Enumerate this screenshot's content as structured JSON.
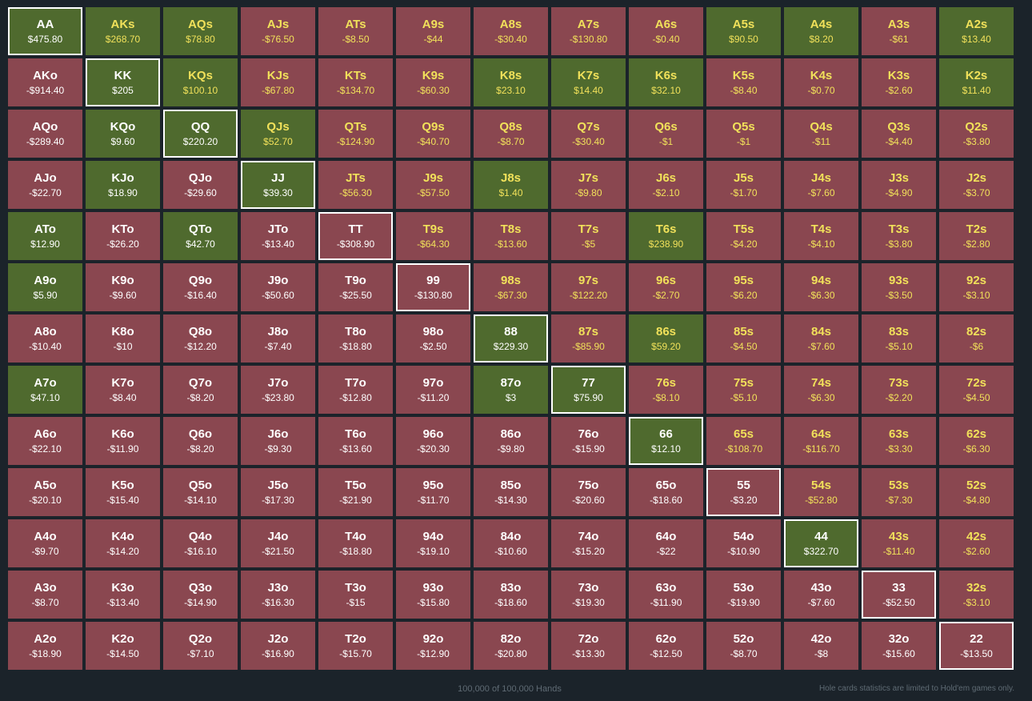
{
  "colors": {
    "background": "#1b232a",
    "negative_cell": "#8a4750",
    "positive_cell": "#4f6a2e",
    "suited_text": "#f1e15a",
    "offsuit_text": "#ffffff",
    "pair_border": "#ffffff"
  },
  "grid": {
    "rows": [
      [
        {
          "hand": "AA",
          "amount": "$475.80"
        },
        {
          "hand": "AKs",
          "amount": "$268.70"
        },
        {
          "hand": "AQs",
          "amount": "$78.80"
        },
        {
          "hand": "AJs",
          "amount": "-$76.50"
        },
        {
          "hand": "ATs",
          "amount": "-$8.50"
        },
        {
          "hand": "A9s",
          "amount": "-$44"
        },
        {
          "hand": "A8s",
          "amount": "-$30.40"
        },
        {
          "hand": "A7s",
          "amount": "-$130.80"
        },
        {
          "hand": "A6s",
          "amount": "-$0.40"
        },
        {
          "hand": "A5s",
          "amount": "$90.50"
        },
        {
          "hand": "A4s",
          "amount": "$8.20"
        },
        {
          "hand": "A3s",
          "amount": "-$61"
        },
        {
          "hand": "A2s",
          "amount": "$13.40"
        }
      ],
      [
        {
          "hand": "AKo",
          "amount": "-$914.40"
        },
        {
          "hand": "KK",
          "amount": "$205"
        },
        {
          "hand": "KQs",
          "amount": "$100.10"
        },
        {
          "hand": "KJs",
          "amount": "-$67.80"
        },
        {
          "hand": "KTs",
          "amount": "-$134.70"
        },
        {
          "hand": "K9s",
          "amount": "-$60.30"
        },
        {
          "hand": "K8s",
          "amount": "$23.10"
        },
        {
          "hand": "K7s",
          "amount": "$14.40"
        },
        {
          "hand": "K6s",
          "amount": "$32.10"
        },
        {
          "hand": "K5s",
          "amount": "-$8.40"
        },
        {
          "hand": "K4s",
          "amount": "-$0.70"
        },
        {
          "hand": "K3s",
          "amount": "-$2.60"
        },
        {
          "hand": "K2s",
          "amount": "$11.40"
        }
      ],
      [
        {
          "hand": "AQo",
          "amount": "-$289.40"
        },
        {
          "hand": "KQo",
          "amount": "$9.60"
        },
        {
          "hand": "QQ",
          "amount": "$220.20"
        },
        {
          "hand": "QJs",
          "amount": "$52.70"
        },
        {
          "hand": "QTs",
          "amount": "-$124.90"
        },
        {
          "hand": "Q9s",
          "amount": "-$40.70"
        },
        {
          "hand": "Q8s",
          "amount": "-$8.70"
        },
        {
          "hand": "Q7s",
          "amount": "-$30.40"
        },
        {
          "hand": "Q6s",
          "amount": "-$1"
        },
        {
          "hand": "Q5s",
          "amount": "-$1"
        },
        {
          "hand": "Q4s",
          "amount": "-$11"
        },
        {
          "hand": "Q3s",
          "amount": "-$4.40"
        },
        {
          "hand": "Q2s",
          "amount": "-$3.80"
        }
      ],
      [
        {
          "hand": "AJo",
          "amount": "-$22.70"
        },
        {
          "hand": "KJo",
          "amount": "$18.90"
        },
        {
          "hand": "QJo",
          "amount": "-$29.60"
        },
        {
          "hand": "JJ",
          "amount": "$39.30"
        },
        {
          "hand": "JTs",
          "amount": "-$56.30"
        },
        {
          "hand": "J9s",
          "amount": "-$57.50"
        },
        {
          "hand": "J8s",
          "amount": "$1.40"
        },
        {
          "hand": "J7s",
          "amount": "-$9.80"
        },
        {
          "hand": "J6s",
          "amount": "-$2.10"
        },
        {
          "hand": "J5s",
          "amount": "-$1.70"
        },
        {
          "hand": "J4s",
          "amount": "-$7.60"
        },
        {
          "hand": "J3s",
          "amount": "-$4.90"
        },
        {
          "hand": "J2s",
          "amount": "-$3.70"
        }
      ],
      [
        {
          "hand": "ATo",
          "amount": "$12.90"
        },
        {
          "hand": "KTo",
          "amount": "-$26.20"
        },
        {
          "hand": "QTo",
          "amount": "$42.70"
        },
        {
          "hand": "JTo",
          "amount": "-$13.40"
        },
        {
          "hand": "TT",
          "amount": "-$308.90"
        },
        {
          "hand": "T9s",
          "amount": "-$64.30"
        },
        {
          "hand": "T8s",
          "amount": "-$13.60"
        },
        {
          "hand": "T7s",
          "amount": "-$5"
        },
        {
          "hand": "T6s",
          "amount": "$238.90"
        },
        {
          "hand": "T5s",
          "amount": "-$4.20"
        },
        {
          "hand": "T4s",
          "amount": "-$4.10"
        },
        {
          "hand": "T3s",
          "amount": "-$3.80"
        },
        {
          "hand": "T2s",
          "amount": "-$2.80"
        }
      ],
      [
        {
          "hand": "A9o",
          "amount": "$5.90"
        },
        {
          "hand": "K9o",
          "amount": "-$9.60"
        },
        {
          "hand": "Q9o",
          "amount": "-$16.40"
        },
        {
          "hand": "J9o",
          "amount": "-$50.60"
        },
        {
          "hand": "T9o",
          "amount": "-$25.50"
        },
        {
          "hand": "99",
          "amount": "-$130.80"
        },
        {
          "hand": "98s",
          "amount": "-$67.30"
        },
        {
          "hand": "97s",
          "amount": "-$122.20"
        },
        {
          "hand": "96s",
          "amount": "-$2.70"
        },
        {
          "hand": "95s",
          "amount": "-$6.20"
        },
        {
          "hand": "94s",
          "amount": "-$6.30"
        },
        {
          "hand": "93s",
          "amount": "-$3.50"
        },
        {
          "hand": "92s",
          "amount": "-$3.10"
        }
      ],
      [
        {
          "hand": "A8o",
          "amount": "-$10.40"
        },
        {
          "hand": "K8o",
          "amount": "-$10"
        },
        {
          "hand": "Q8o",
          "amount": "-$12.20"
        },
        {
          "hand": "J8o",
          "amount": "-$7.40"
        },
        {
          "hand": "T8o",
          "amount": "-$18.80"
        },
        {
          "hand": "98o",
          "amount": "-$2.50"
        },
        {
          "hand": "88",
          "amount": "$229.30"
        },
        {
          "hand": "87s",
          "amount": "-$85.90"
        },
        {
          "hand": "86s",
          "amount": "$59.20"
        },
        {
          "hand": "85s",
          "amount": "-$4.50"
        },
        {
          "hand": "84s",
          "amount": "-$7.60"
        },
        {
          "hand": "83s",
          "amount": "-$5.10"
        },
        {
          "hand": "82s",
          "amount": "-$6"
        }
      ],
      [
        {
          "hand": "A7o",
          "amount": "$47.10"
        },
        {
          "hand": "K7o",
          "amount": "-$8.40"
        },
        {
          "hand": "Q7o",
          "amount": "-$8.20"
        },
        {
          "hand": "J7o",
          "amount": "-$23.80"
        },
        {
          "hand": "T7o",
          "amount": "-$12.80"
        },
        {
          "hand": "97o",
          "amount": "-$11.20"
        },
        {
          "hand": "87o",
          "amount": "$3"
        },
        {
          "hand": "77",
          "amount": "$75.90"
        },
        {
          "hand": "76s",
          "amount": "-$8.10"
        },
        {
          "hand": "75s",
          "amount": "-$5.10"
        },
        {
          "hand": "74s",
          "amount": "-$6.30"
        },
        {
          "hand": "73s",
          "amount": "-$2.20"
        },
        {
          "hand": "72s",
          "amount": "-$4.50"
        }
      ],
      [
        {
          "hand": "A6o",
          "amount": "-$22.10"
        },
        {
          "hand": "K6o",
          "amount": "-$11.90"
        },
        {
          "hand": "Q6o",
          "amount": "-$8.20"
        },
        {
          "hand": "J6o",
          "amount": "-$9.30"
        },
        {
          "hand": "T6o",
          "amount": "-$13.60"
        },
        {
          "hand": "96o",
          "amount": "-$20.30"
        },
        {
          "hand": "86o",
          "amount": "-$9.80"
        },
        {
          "hand": "76o",
          "amount": "-$15.90"
        },
        {
          "hand": "66",
          "amount": "$12.10"
        },
        {
          "hand": "65s",
          "amount": "-$108.70"
        },
        {
          "hand": "64s",
          "amount": "-$116.70"
        },
        {
          "hand": "63s",
          "amount": "-$3.30"
        },
        {
          "hand": "62s",
          "amount": "-$6.30"
        }
      ],
      [
        {
          "hand": "A5o",
          "amount": "-$20.10"
        },
        {
          "hand": "K5o",
          "amount": "-$15.40"
        },
        {
          "hand": "Q5o",
          "amount": "-$14.10"
        },
        {
          "hand": "J5o",
          "amount": "-$17.30"
        },
        {
          "hand": "T5o",
          "amount": "-$21.90"
        },
        {
          "hand": "95o",
          "amount": "-$11.70"
        },
        {
          "hand": "85o",
          "amount": "-$14.30"
        },
        {
          "hand": "75o",
          "amount": "-$20.60"
        },
        {
          "hand": "65o",
          "amount": "-$18.60"
        },
        {
          "hand": "55",
          "amount": "-$3.20"
        },
        {
          "hand": "54s",
          "amount": "-$52.80"
        },
        {
          "hand": "53s",
          "amount": "-$7.30"
        },
        {
          "hand": "52s",
          "amount": "-$4.80"
        }
      ],
      [
        {
          "hand": "A4o",
          "amount": "-$9.70"
        },
        {
          "hand": "K4o",
          "amount": "-$14.20"
        },
        {
          "hand": "Q4o",
          "amount": "-$16.10"
        },
        {
          "hand": "J4o",
          "amount": "-$21.50"
        },
        {
          "hand": "T4o",
          "amount": "-$18.80"
        },
        {
          "hand": "94o",
          "amount": "-$19.10"
        },
        {
          "hand": "84o",
          "amount": "-$10.60"
        },
        {
          "hand": "74o",
          "amount": "-$15.20"
        },
        {
          "hand": "64o",
          "amount": "-$22"
        },
        {
          "hand": "54o",
          "amount": "-$10.90"
        },
        {
          "hand": "44",
          "amount": "$322.70"
        },
        {
          "hand": "43s",
          "amount": "-$11.40"
        },
        {
          "hand": "42s",
          "amount": "-$2.60"
        }
      ],
      [
        {
          "hand": "A3o",
          "amount": "-$8.70"
        },
        {
          "hand": "K3o",
          "amount": "-$13.40"
        },
        {
          "hand": "Q3o",
          "amount": "-$14.90"
        },
        {
          "hand": "J3o",
          "amount": "-$16.30"
        },
        {
          "hand": "T3o",
          "amount": "-$15"
        },
        {
          "hand": "93o",
          "amount": "-$15.80"
        },
        {
          "hand": "83o",
          "amount": "-$18.60"
        },
        {
          "hand": "73o",
          "amount": "-$19.30"
        },
        {
          "hand": "63o",
          "amount": "-$11.90"
        },
        {
          "hand": "53o",
          "amount": "-$19.90"
        },
        {
          "hand": "43o",
          "amount": "-$7.60"
        },
        {
          "hand": "33",
          "amount": "-$52.50"
        },
        {
          "hand": "32s",
          "amount": "-$3.10"
        }
      ],
      [
        {
          "hand": "A2o",
          "amount": "-$18.90"
        },
        {
          "hand": "K2o",
          "amount": "-$14.50"
        },
        {
          "hand": "Q2o",
          "amount": "-$7.10"
        },
        {
          "hand": "J2o",
          "amount": "-$16.90"
        },
        {
          "hand": "T2o",
          "amount": "-$15.70"
        },
        {
          "hand": "92o",
          "amount": "-$12.90"
        },
        {
          "hand": "82o",
          "amount": "-$20.80"
        },
        {
          "hand": "72o",
          "amount": "-$13.30"
        },
        {
          "hand": "62o",
          "amount": "-$12.50"
        },
        {
          "hand": "52o",
          "amount": "-$8.70"
        },
        {
          "hand": "42o",
          "amount": "-$8"
        },
        {
          "hand": "32o",
          "amount": "-$15.60"
        },
        {
          "hand": "22",
          "amount": "-$13.50"
        }
      ]
    ]
  },
  "footer": {
    "hands_count": "100,000 of 100,000 Hands",
    "note": "Hole cards statistics are limited to Hold'em games only."
  }
}
